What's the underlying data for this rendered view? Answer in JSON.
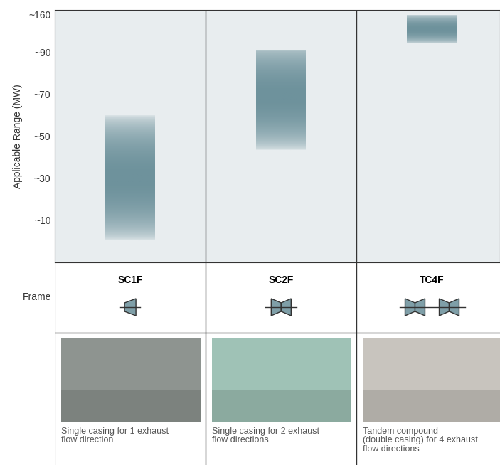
{
  "chart_data": {
    "type": "bar",
    "ylabel": "Applicable Range (MW)",
    "categories": [
      "SC1F",
      "SC2F",
      "TC4F"
    ],
    "values": [
      [
        0,
        60
      ],
      [
        43,
        95
      ],
      [
        105,
        160
      ]
    ],
    "color": "#6e929c",
    "ylim": [
      -10,
      168
    ],
    "yticks": [
      {
        "value": 10,
        "label": "~10"
      },
      {
        "value": 30,
        "label": "~30"
      },
      {
        "value": 50,
        "label": "~50"
      },
      {
        "value": 70,
        "label": "~70"
      },
      {
        "value": 90,
        "label": "~90"
      },
      {
        "value": 160,
        "label": "~160"
      }
    ],
    "grid": false
  },
  "row_label": "Frame",
  "captions": [
    "Single casing for 1 exhaust\nflow direction",
    "Single casing for 2 exhaust\nflow directions",
    "Tandem compound\n(double casing) for 4 exhaust\nflow directions"
  ]
}
